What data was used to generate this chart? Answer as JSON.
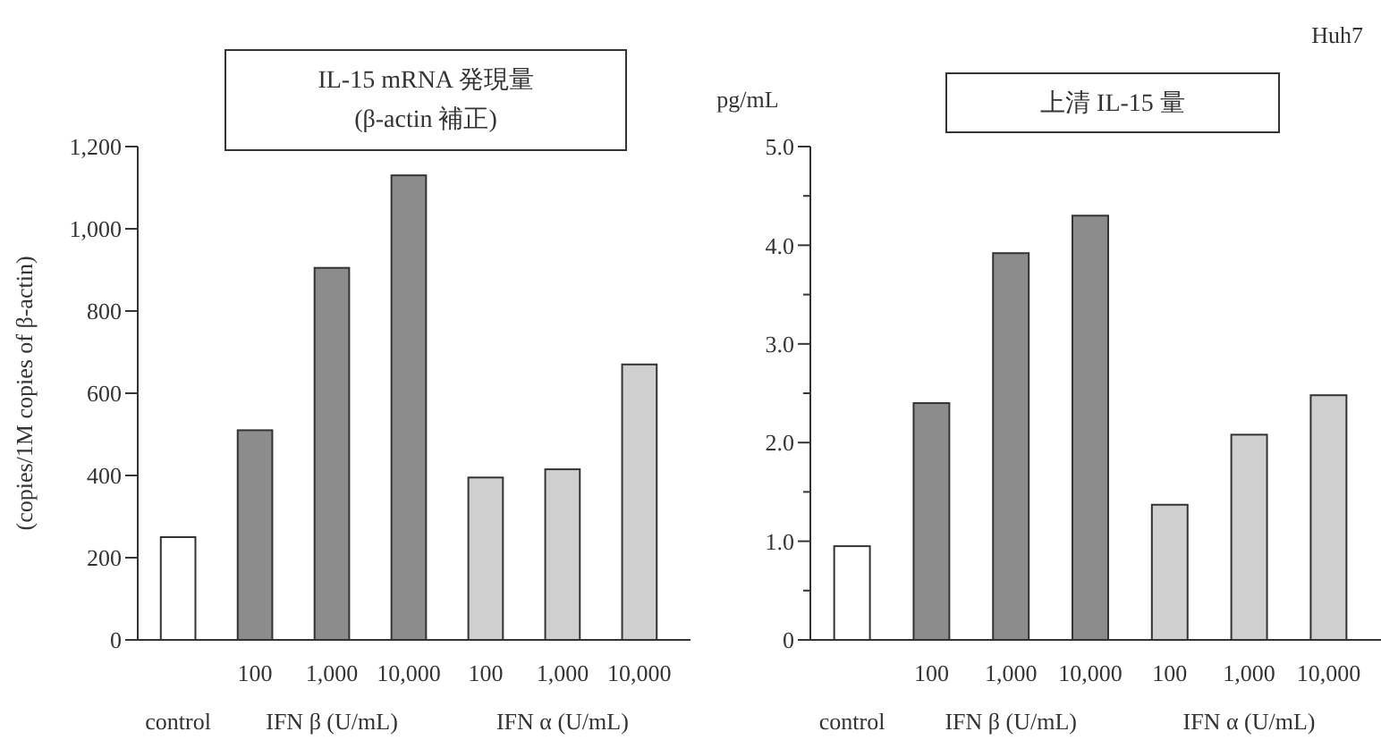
{
  "chart_data": [
    {
      "type": "bar",
      "title": "IL-15 mRNA 発現量",
      "subtitle": "(β-actin 補正)",
      "ylabel": "(copies/1M copies of β-actin)",
      "categories": [
        null,
        "100",
        "1,000",
        "10,000",
        "100",
        "1,000",
        "10,000"
      ],
      "values": [
        250,
        510,
        905,
        1130,
        395,
        415,
        670
      ],
      "colors": [
        "#ffffff",
        "#8c8c8c",
        "#8c8c8c",
        "#8c8c8c",
        "#cfcfcf",
        "#cfcfcf",
        "#cfcfcf"
      ],
      "ylim": [
        0,
        1200
      ],
      "yticks": [
        0,
        {
          "value": 200,
          "label": "200"
        },
        {
          "value": 400,
          "label": "400"
        },
        {
          "value": 600,
          "label": "600"
        },
        {
          "value": 800,
          "label": "800"
        },
        {
          "value": 1000,
          "label": "1,000"
        },
        {
          "value": 1200,
          "label": "1,200"
        }
      ],
      "annotations": [
        "control",
        "IFN β (U/mL)",
        "IFN α (U/mL)"
      ]
    },
    {
      "type": "bar",
      "title": "上清 IL-15 量",
      "ylabel": "pg/mL",
      "categories": [
        null,
        "100",
        "1,000",
        "10,000",
        "100",
        "1,000",
        "10,000"
      ],
      "values": [
        0.95,
        2.4,
        3.92,
        4.3,
        1.37,
        2.08,
        2.48
      ],
      "colors": [
        "#ffffff",
        "#8c8c8c",
        "#8c8c8c",
        "#8c8c8c",
        "#cfcfcf",
        "#cfcfcf",
        "#cfcfcf"
      ],
      "ylim": [
        0,
        5
      ],
      "yticks": [
        0,
        {
          "value": 0.5,
          "label": null
        },
        {
          "value": 1,
          "label": "1.0"
        },
        {
          "value": 1.5,
          "label": null
        },
        {
          "value": 2,
          "label": "2.0"
        },
        {
          "value": 2.5,
          "label": null
        },
        {
          "value": 3,
          "label": "3.0"
        },
        {
          "value": 3.5,
          "label": null
        },
        {
          "value": 4,
          "label": "4.0"
        },
        {
          "value": 4.5,
          "label": null
        },
        {
          "value": 5,
          "label": "5.0"
        }
      ],
      "annotations": [
        "control",
        "IFN β (U/mL)",
        "IFN α (U/mL)",
        "Huh7"
      ]
    }
  ]
}
